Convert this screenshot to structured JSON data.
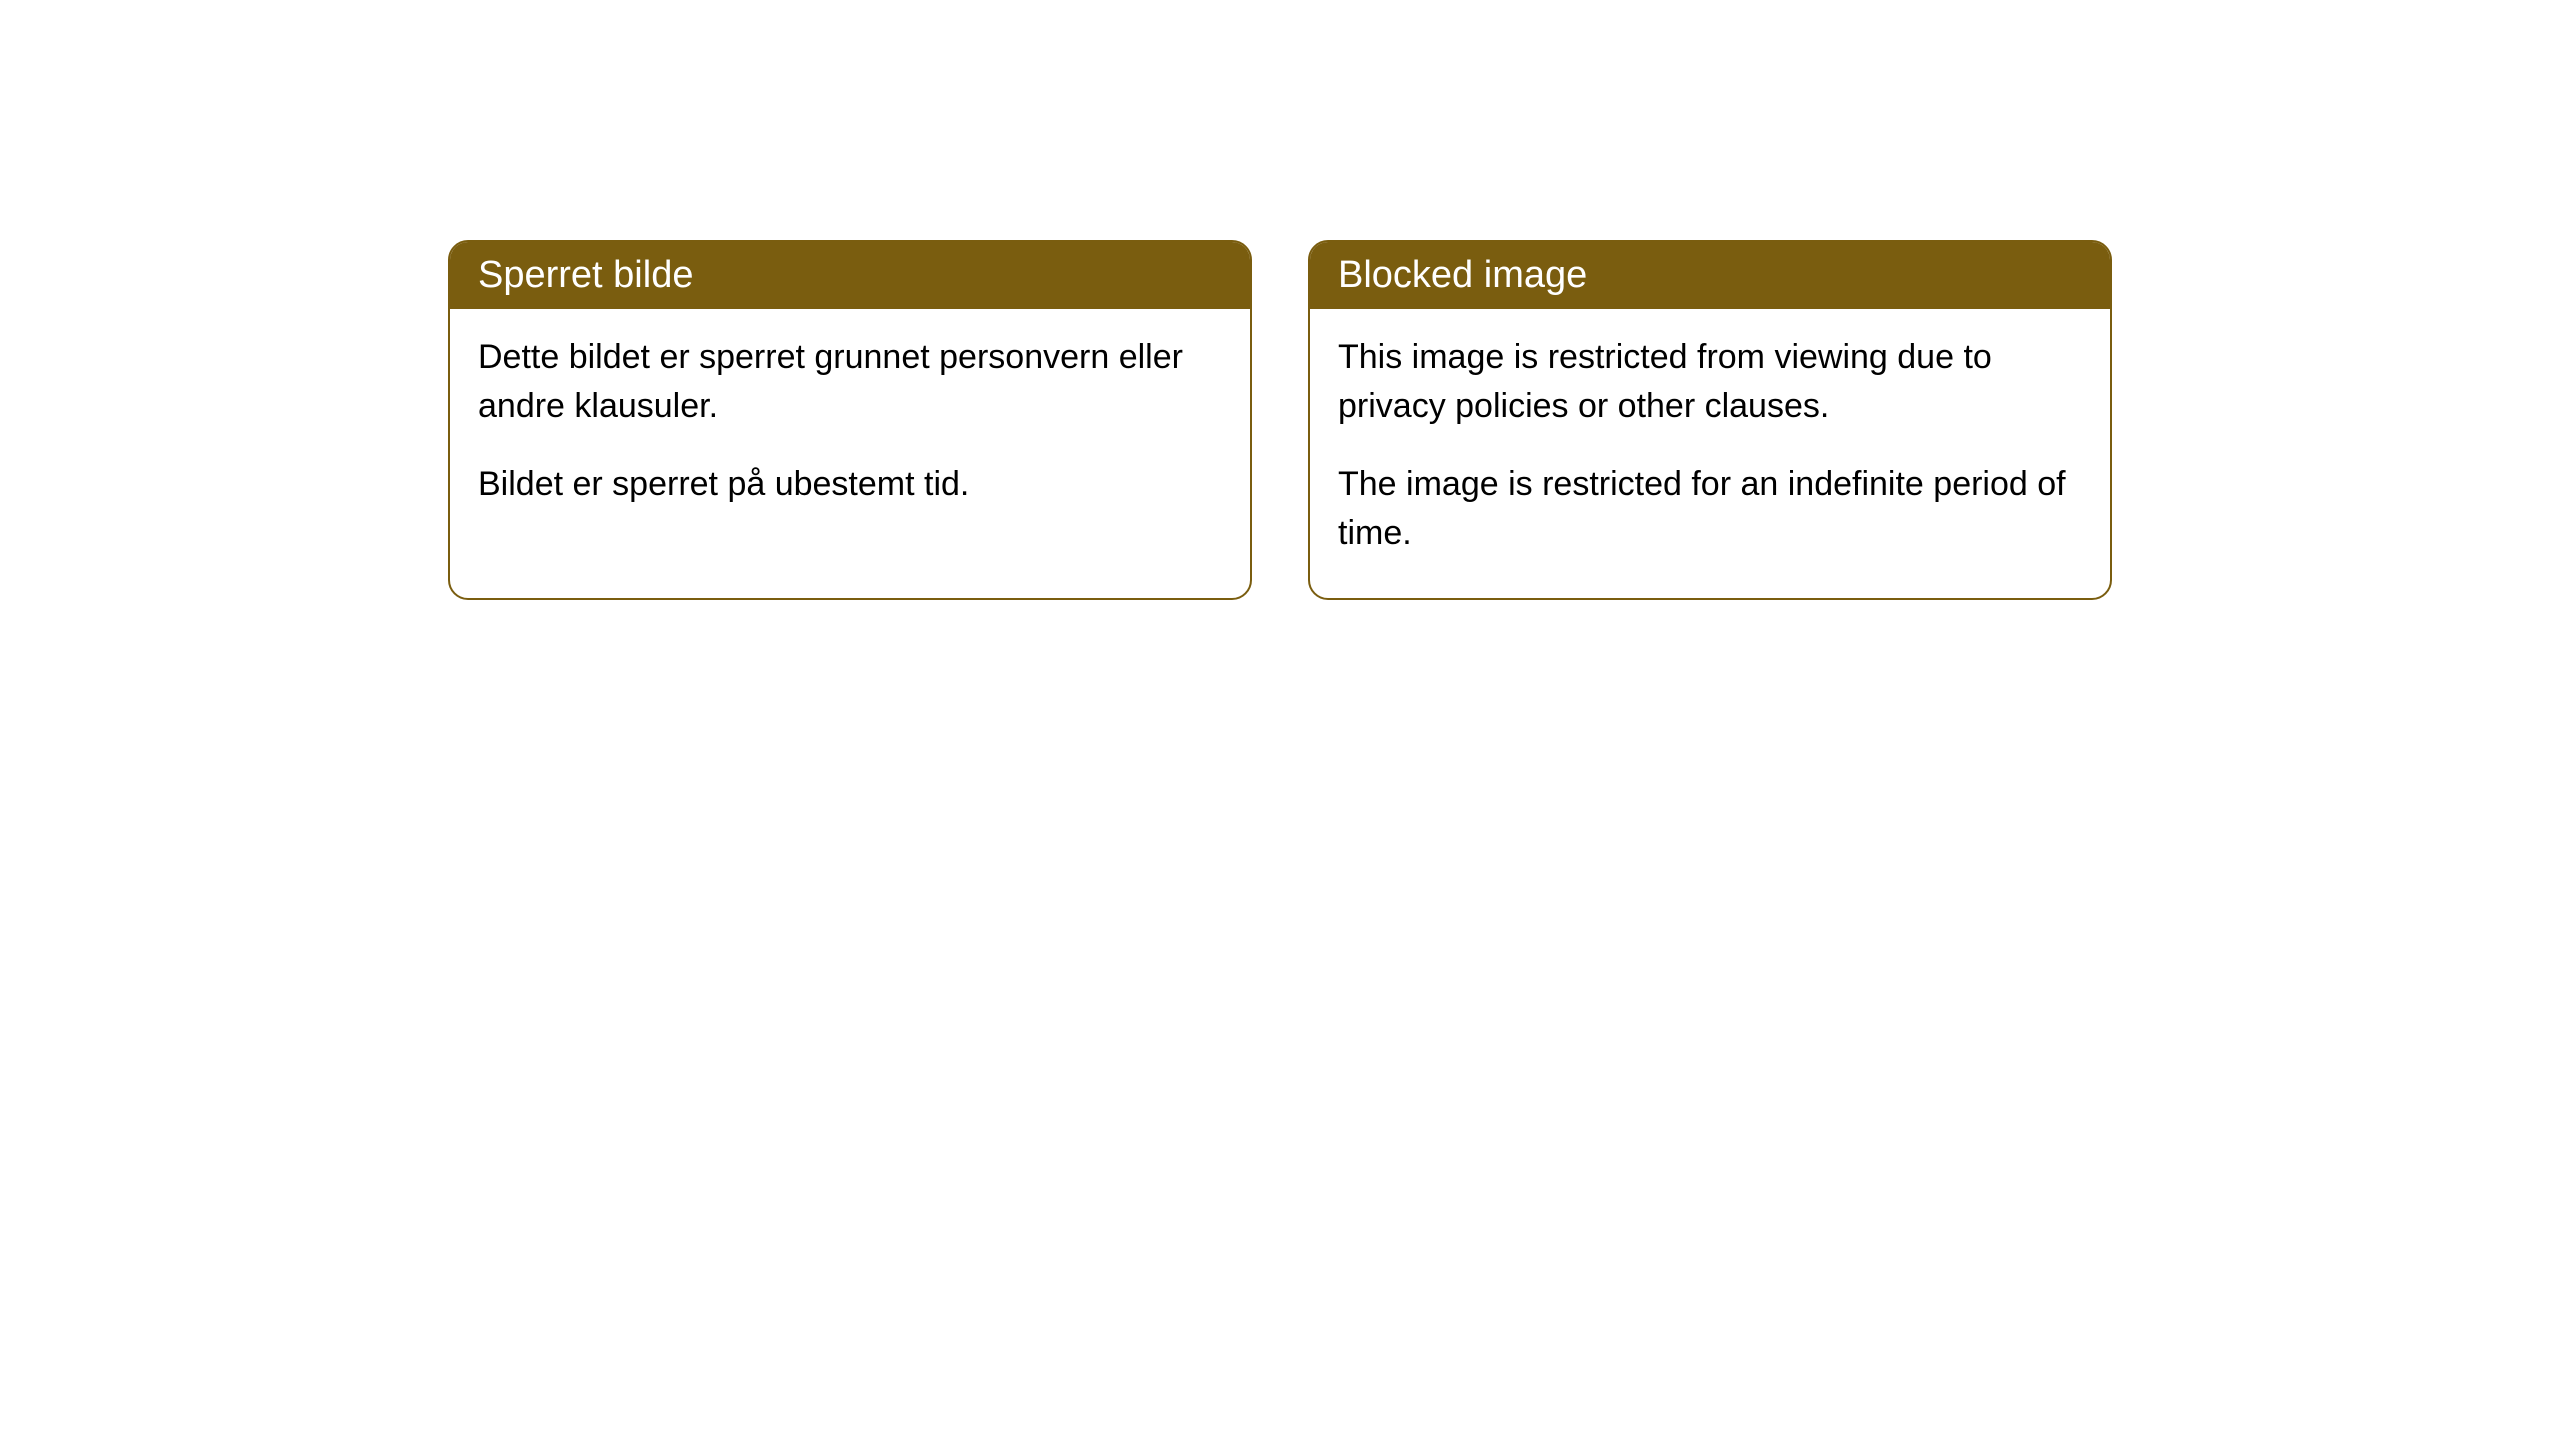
{
  "cards": [
    {
      "title": "Sperret bilde",
      "paragraph1": "Dette bildet er sperret grunnet personvern eller andre klausuler.",
      "paragraph2": "Bildet er sperret på ubestemt tid."
    },
    {
      "title": "Blocked image",
      "paragraph1": "This image is restricted from viewing due to privacy policies or other clauses.",
      "paragraph2": "The image is restricted for an indefinite period of time."
    }
  ],
  "style": {
    "header_background": "#7a5d0f",
    "header_text_color": "#ffffff",
    "border_color": "#7a5d0f",
    "body_background": "#ffffff",
    "body_text_color": "#000000",
    "border_radius": "20px",
    "title_fontsize": 38,
    "body_fontsize": 34
  }
}
